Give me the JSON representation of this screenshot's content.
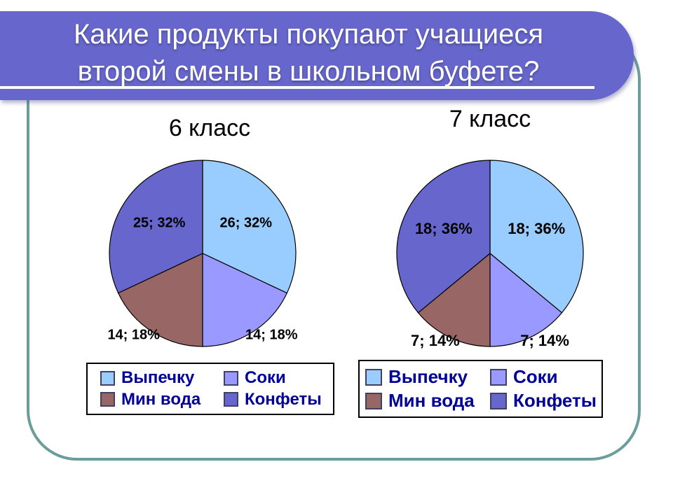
{
  "slide": {
    "title_line1": "Какие продукты покупают учащиеся",
    "title_line2": "второй смены в школьном буфете?",
    "colors": {
      "banner": "#6666CC",
      "frame": "#6B9D9A",
      "legend_text": "#000099",
      "title_text": "#FFFFFF"
    }
  },
  "chart_data": [
    {
      "type": "pie",
      "title": "6 класс",
      "labels": [
        "Выпечку",
        "Соки",
        "Мин вода",
        "Конфеты"
      ],
      "values": [
        26,
        14,
        14,
        25
      ],
      "percents": [
        32,
        18,
        18,
        32
      ],
      "data_labels": [
        "26; 32%",
        "14; 18%",
        "14; 18%",
        "25; 32%"
      ],
      "colors": [
        "#99CCFF",
        "#9999FF",
        "#996666",
        "#6666CC"
      ],
      "legend_position": "bottom",
      "start_angle_deg": 0,
      "direction": "clockwise"
    },
    {
      "type": "pie",
      "title": "7 класс",
      "labels": [
        "Выпечку",
        "Соки",
        "Мин вода",
        "Конфеты"
      ],
      "values": [
        18,
        7,
        7,
        18
      ],
      "percents": [
        36,
        14,
        14,
        36
      ],
      "data_labels": [
        "18; 36%",
        "7; 14%",
        "7; 14%",
        "18; 36%"
      ],
      "colors": [
        "#99CCFF",
        "#9999FF",
        "#996666",
        "#6666CC"
      ],
      "legend_position": "bottom",
      "start_angle_deg": 0,
      "direction": "clockwise"
    }
  ]
}
